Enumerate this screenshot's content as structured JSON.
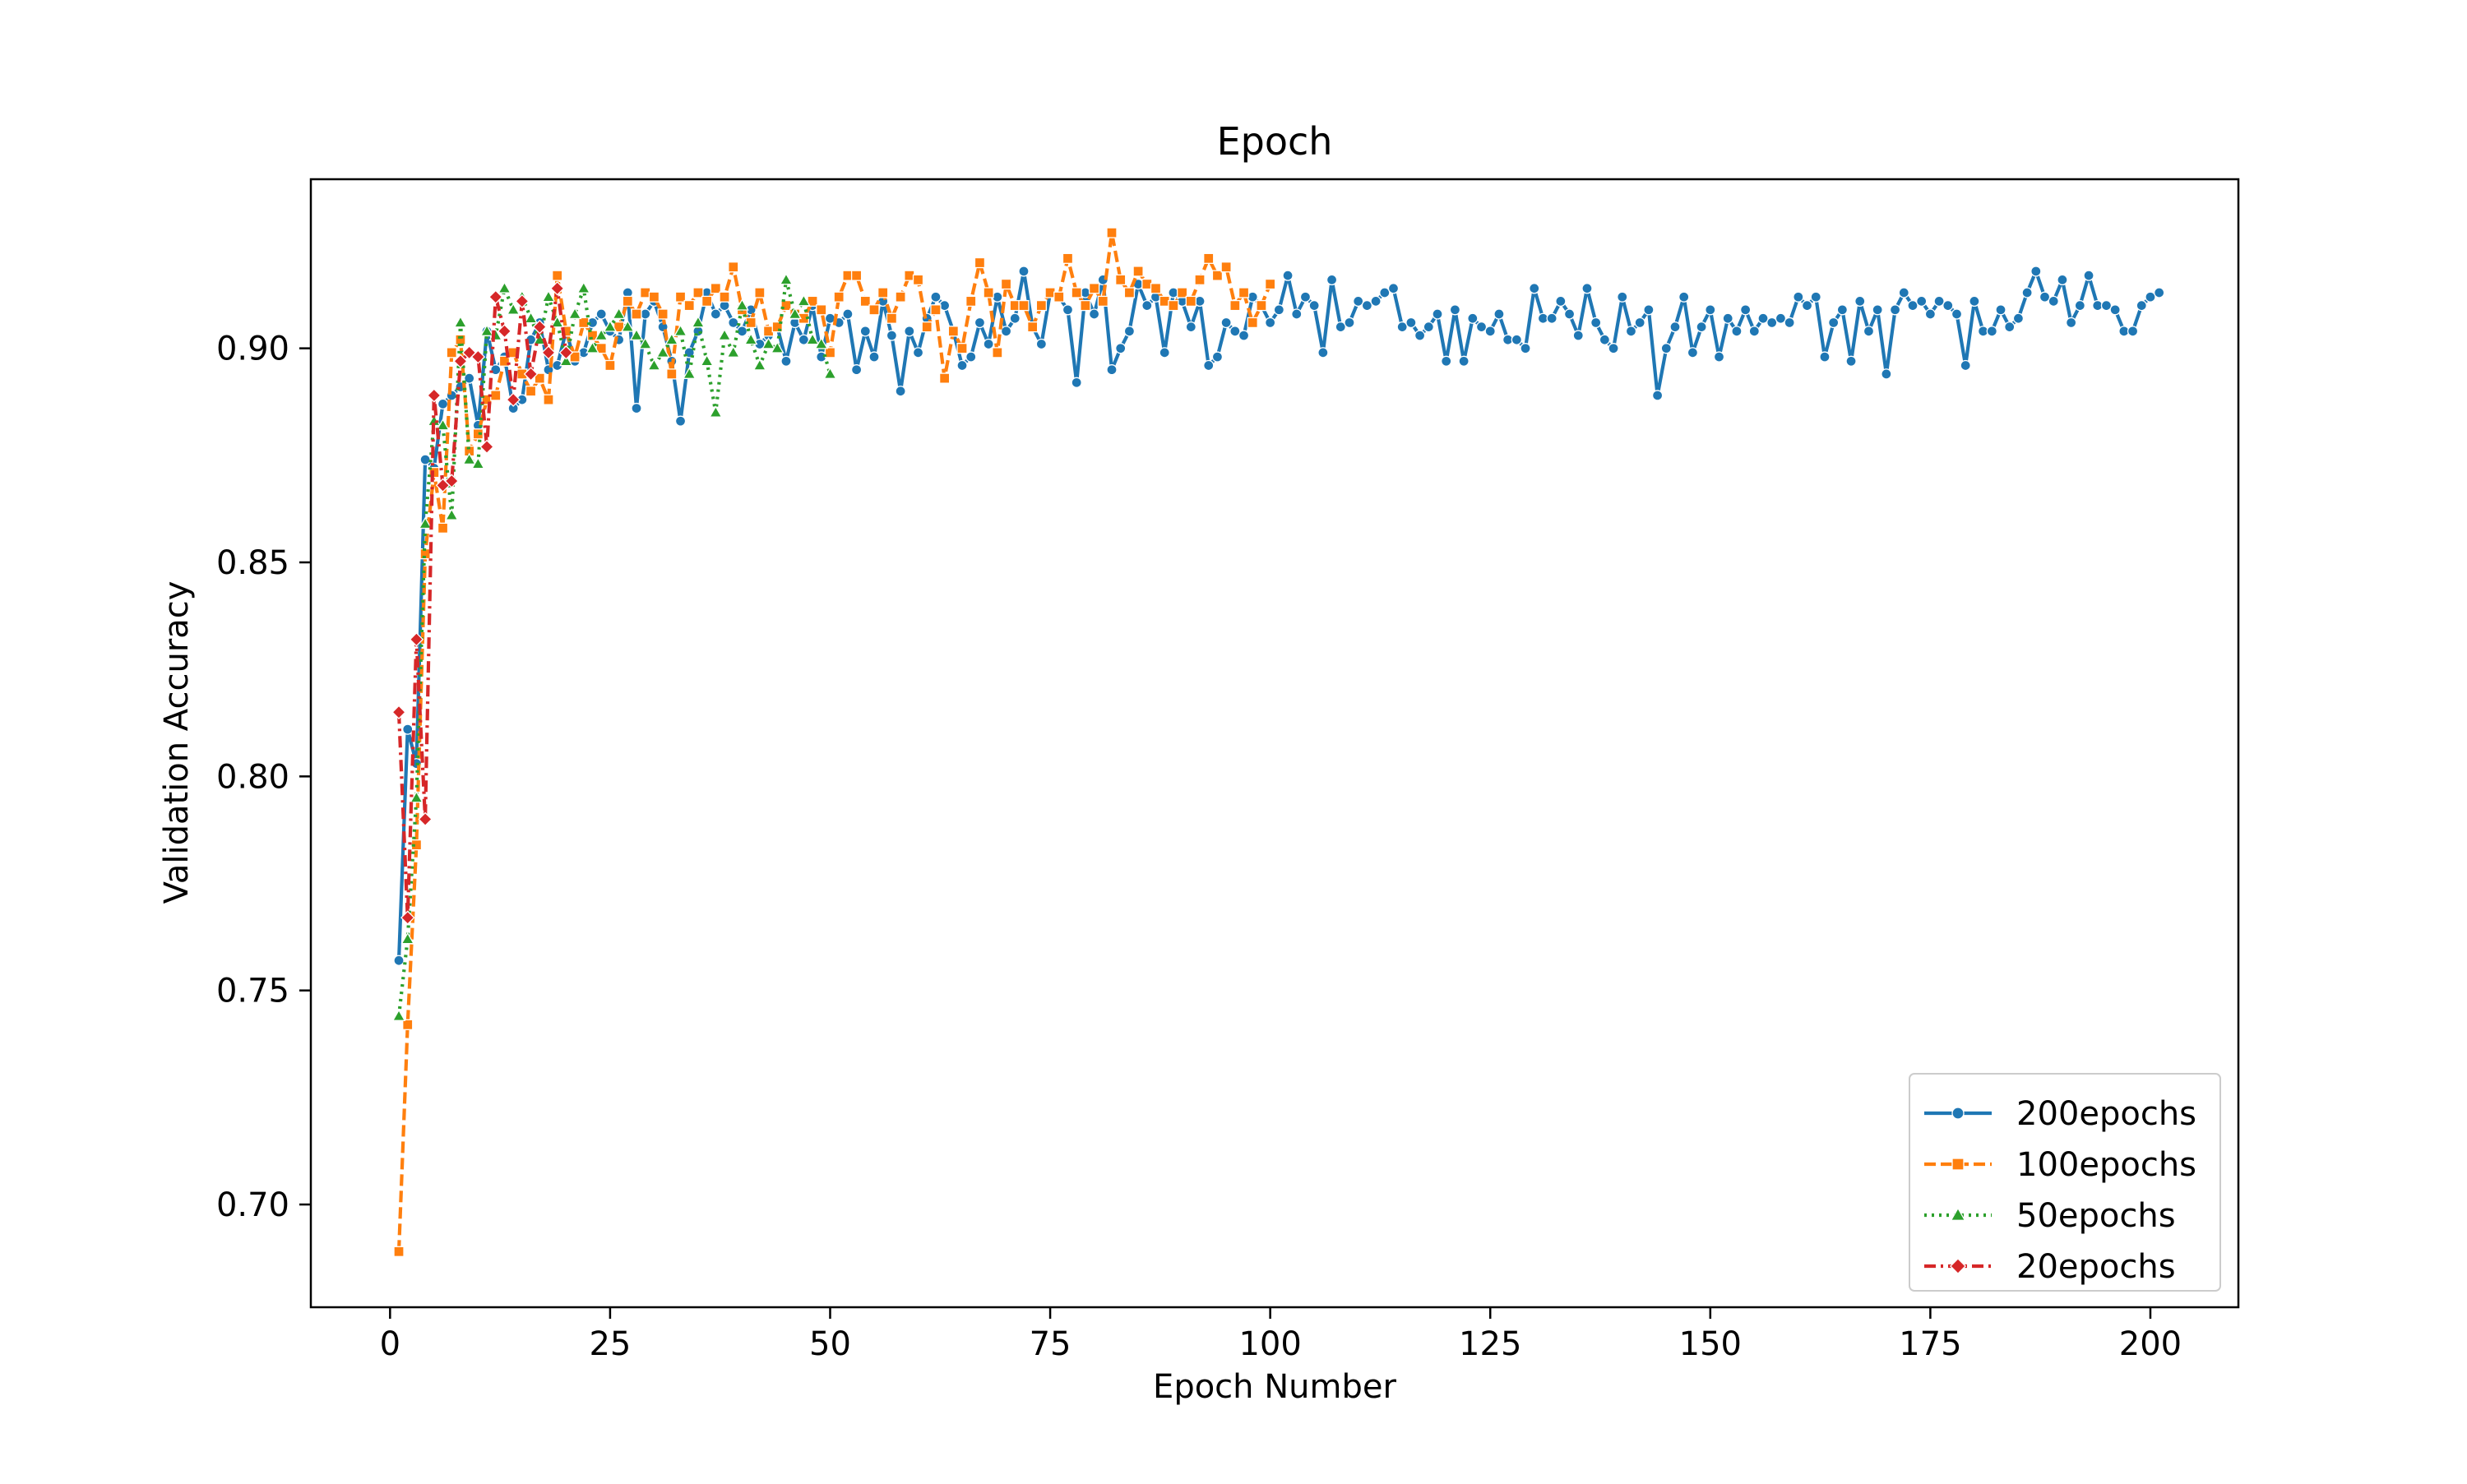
{
  "chart_data": {
    "type": "line",
    "title": "Epoch",
    "xlabel": "Epoch Number",
    "ylabel": "Validation Accuracy",
    "xlim": [
      -9,
      210
    ],
    "ylim": [
      0.676,
      0.9395
    ],
    "x_ticks": [
      0,
      25,
      50,
      75,
      100,
      125,
      150,
      175,
      200
    ],
    "y_ticks": [
      0.7,
      0.75,
      0.8,
      0.85,
      0.9
    ],
    "x_tick_labels": [
      "0",
      "25",
      "50",
      "75",
      "100",
      "125",
      "150",
      "175",
      "200"
    ],
    "y_tick_labels": [
      "0.70",
      "0.75",
      "0.80",
      "0.85",
      "0.90"
    ],
    "grid": false,
    "legend_position": "bottom-right",
    "series": [
      {
        "name": "200epochs",
        "color": "#1f77b4",
        "dash": "solid",
        "marker": "circle",
        "values": [
          0.757,
          0.811,
          0.803,
          0.874,
          0.872,
          0.887,
          0.889,
          0.891,
          0.893,
          0.882,
          0.904,
          0.895,
          0.898,
          0.886,
          0.888,
          0.902,
          0.906,
          0.895,
          0.896,
          0.904,
          0.897,
          0.899,
          0.906,
          0.908,
          0.904,
          0.902,
          0.913,
          0.886,
          0.908,
          0.911,
          0.905,
          0.897,
          0.883,
          0.899,
          0.904,
          0.913,
          0.908,
          0.91,
          0.906,
          0.904,
          0.909,
          0.901,
          0.903,
          0.905,
          0.897,
          0.906,
          0.902,
          0.91,
          0.898,
          0.907,
          0.906,
          0.908,
          0.895,
          0.904,
          0.898,
          0.911,
          0.903,
          0.89,
          0.904,
          0.899,
          0.907,
          0.912,
          0.91,
          0.904,
          0.896,
          0.898,
          0.906,
          0.901,
          0.912,
          0.904,
          0.907,
          0.918,
          0.905,
          0.901,
          0.913,
          0.912,
          0.909,
          0.892,
          0.913,
          0.908,
          0.916,
          0.895,
          0.9,
          0.904,
          0.915,
          0.91,
          0.912,
          0.899,
          0.913,
          0.911,
          0.905,
          0.911,
          0.896,
          0.898,
          0.906,
          0.904,
          0.903,
          0.912,
          0.91,
          0.906,
          0.909,
          0.917,
          0.908,
          0.912,
          0.91,
          0.899,
          0.916,
          0.905,
          0.906,
          0.911,
          0.91,
          0.911,
          0.913,
          0.914,
          0.905,
          0.906,
          0.903,
          0.905,
          0.908,
          0.897,
          0.909,
          0.897,
          0.907,
          0.905,
          0.904,
          0.908,
          0.902,
          0.902,
          0.9,
          0.914,
          0.907,
          0.907,
          0.911,
          0.908,
          0.903,
          0.914,
          0.906,
          0.902,
          0.9,
          0.912,
          0.904,
          0.906,
          0.909,
          0.889,
          0.9,
          0.905,
          0.912,
          0.899,
          0.905,
          0.909,
          0.898,
          0.907,
          0.904,
          0.909,
          0.904,
          0.907,
          0.906,
          0.907,
          0.906,
          0.912,
          0.91,
          0.912,
          0.898,
          0.906,
          0.909,
          0.897,
          0.911,
          0.904,
          0.909,
          0.894,
          0.909,
          0.913,
          0.91,
          0.911,
          0.908,
          0.911,
          0.91,
          0.908,
          0.896,
          0.911,
          0.904,
          0.904,
          0.909,
          0.905,
          0.907,
          0.913,
          0.918,
          0.912,
          0.911,
          0.916,
          0.906,
          0.91,
          0.917,
          0.91,
          0.91,
          0.909,
          0.904,
          0.904,
          0.91,
          0.912,
          0.913
        ]
      },
      {
        "name": "100epochs",
        "color": "#ff7f0e",
        "dash": "dashed",
        "marker": "square",
        "values": [
          0.689,
          0.742,
          0.784,
          0.852,
          0.871,
          0.858,
          0.899,
          0.902,
          0.876,
          0.88,
          0.888,
          0.889,
          0.897,
          0.899,
          0.894,
          0.89,
          0.893,
          0.888,
          0.917,
          0.904,
          0.898,
          0.906,
          0.903,
          0.9,
          0.896,
          0.905,
          0.911,
          0.908,
          0.913,
          0.912,
          0.908,
          0.894,
          0.912,
          0.91,
          0.913,
          0.911,
          0.914,
          0.912,
          0.919,
          0.909,
          0.906,
          0.913,
          0.904,
          0.905,
          0.91,
          0.908,
          0.907,
          0.911,
          0.909,
          0.899,
          0.912,
          0.917,
          0.917,
          0.911,
          0.909,
          0.913,
          0.907,
          0.912,
          0.917,
          0.916,
          0.905,
          0.909,
          0.893,
          0.904,
          0.9,
          0.911,
          0.92,
          0.913,
          0.899,
          0.915,
          0.91,
          0.91,
          0.905,
          0.91,
          0.913,
          0.912,
          0.921,
          0.913,
          0.91,
          0.914,
          0.911,
          0.927,
          0.916,
          0.913,
          0.918,
          0.915,
          0.914,
          0.911,
          0.91,
          0.913,
          0.911,
          0.916,
          0.921,
          0.917,
          0.919,
          0.91,
          0.913,
          0.906,
          0.91,
          0.915
        ]
      },
      {
        "name": "50epochs",
        "color": "#2ca02c",
        "dash": "dotted",
        "marker": "triangle",
        "values": [
          0.744,
          0.762,
          0.795,
          0.859,
          0.883,
          0.882,
          0.861,
          0.906,
          0.874,
          0.873,
          0.904,
          0.903,
          0.914,
          0.909,
          0.912,
          0.907,
          0.902,
          0.912,
          0.906,
          0.897,
          0.908,
          0.914,
          0.9,
          0.903,
          0.905,
          0.908,
          0.905,
          0.903,
          0.901,
          0.896,
          0.899,
          0.902,
          0.904,
          0.894,
          0.906,
          0.897,
          0.885,
          0.903,
          0.899,
          0.91,
          0.902,
          0.896,
          0.901,
          0.9,
          0.916,
          0.908,
          0.911,
          0.902,
          0.901,
          0.894
        ]
      },
      {
        "name": "20epochs",
        "color": "#d62728",
        "dash": "dashdot",
        "marker": "diamond",
        "values": [
          0.815,
          0.767,
          0.832,
          0.79,
          0.889,
          0.868,
          0.869,
          0.897,
          0.899,
          0.898,
          0.877,
          0.912,
          0.904,
          0.888,
          0.911,
          0.894,
          0.905,
          0.899,
          0.914,
          0.899
        ]
      }
    ]
  }
}
